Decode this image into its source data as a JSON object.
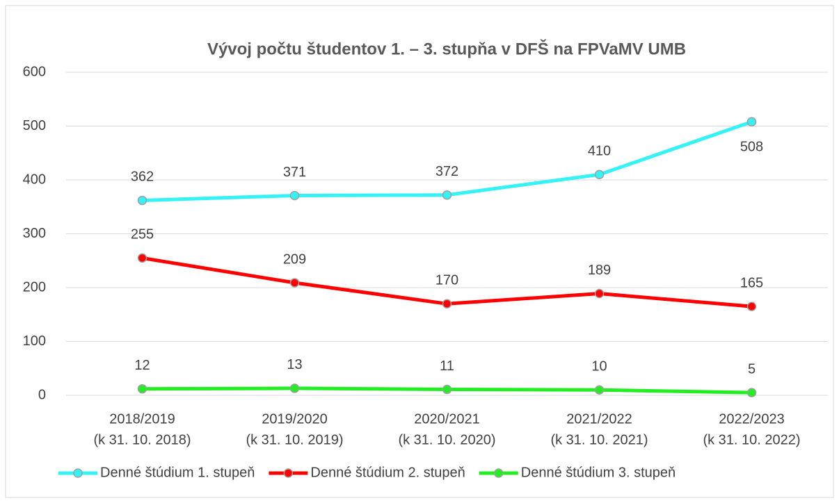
{
  "chart_data": {
    "type": "line",
    "title": "Vývoj počtu študentov 1. – 3. stupňa v DFŠ na FPVaMV UMB",
    "categories": [
      [
        "2018/2019",
        "(k 31. 10. 2018)"
      ],
      [
        "2019/2020",
        "(k 31. 10. 2019)"
      ],
      [
        "2020/2021",
        "(k 31. 10. 2020)"
      ],
      [
        "2021/2022",
        "(k 31. 10. 2021)"
      ],
      [
        "2022/2023",
        "(k 31. 10. 2022)"
      ]
    ],
    "series": [
      {
        "name": "Denné štúdium 1. stupeň",
        "color": "#33f3f7",
        "values": [
          362,
          371,
          372,
          410,
          508
        ]
      },
      {
        "name": "Denné štúdium 2. stupeň",
        "color": "#ff0000",
        "values": [
          255,
          209,
          170,
          189,
          165
        ]
      },
      {
        "name": "Denné štúdium 3. stupeň",
        "color": "#22ee22",
        "values": [
          12,
          13,
          11,
          10,
          5
        ]
      }
    ],
    "ylim": [
      0,
      600
    ],
    "yticks": [
      0,
      100,
      200,
      300,
      400,
      500,
      600
    ],
    "grid": true,
    "legend": "bottom"
  }
}
